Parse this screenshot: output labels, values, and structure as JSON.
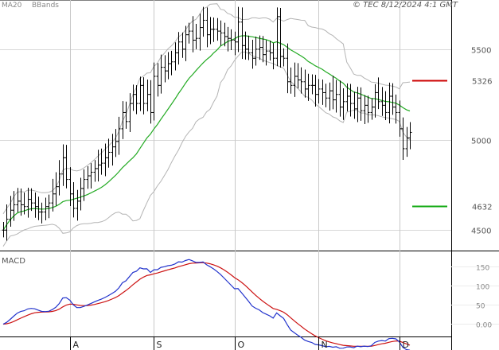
{
  "header": {
    "legend_ma": "MA20",
    "legend_bbands": "BBands",
    "copyright": "© TEC 8/12/2024 4:1 GMT"
  },
  "macd_panel": {
    "title": "MACD"
  },
  "colors": {
    "price_bar": "#000000",
    "ma20": "#22aa22",
    "bbands": "#b4b4b4",
    "grid": "#d8d8d8",
    "macd": "#2233cc",
    "signal": "#cc1111",
    "resistance": "#cc0000",
    "support": "#11aa11"
  },
  "chart_data": [
    {
      "type": "ohlc",
      "title": "",
      "y_ticks": [
        4500,
        5000,
        5500
      ],
      "y_tick_labels": [
        "4500",
        "5000",
        "5500"
      ],
      "ylim": [
        4400,
        5750
      ],
      "x_month_labels": [
        "A",
        "S",
        "O",
        "N",
        "D"
      ],
      "x_month_index": [
        19,
        43,
        66,
        90,
        113
      ],
      "x_count": 117,
      "grid": true,
      "legend": [
        "MA20",
        "BBands"
      ],
      "levels": [
        {
          "label": "5326",
          "value": 5326,
          "color": "#cc0000"
        },
        {
          "label": "4632",
          "value": 4632,
          "color": "#11aa11"
        }
      ],
      "closes": [
        4500,
        4560,
        4610,
        4640,
        4660,
        4640,
        4630,
        4670,
        4650,
        4630,
        4600,
        4600,
        4630,
        4650,
        4700,
        4740,
        4810,
        4900,
        4780,
        4700,
        4620,
        4660,
        4730,
        4780,
        4800,
        4820,
        4840,
        4860,
        4870,
        4900,
        4930,
        4960,
        4990,
        5060,
        5150,
        5100,
        5200,
        5250,
        5200,
        5300,
        5200,
        5250,
        5150,
        5350,
        5300,
        5400,
        5380,
        5420,
        5430,
        5480,
        5540,
        5500,
        5580,
        5600,
        5550,
        5560,
        5620,
        5660,
        5580,
        5610,
        5610,
        5600,
        5590,
        5570,
        5560,
        5550,
        5540,
        5650,
        5520,
        5500,
        5480,
        5450,
        5500,
        5510,
        5470,
        5490,
        5480,
        5450,
        5680,
        5460,
        5450,
        5320,
        5300,
        5350,
        5330,
        5320,
        5280,
        5300,
        5300,
        5250,
        5280,
        5260,
        5230,
        5270,
        5220,
        5250,
        5180,
        5210,
        5240,
        5200,
        5170,
        5230,
        5160,
        5190,
        5150,
        5180,
        5260,
        5210,
        5190,
        5150,
        5240,
        5180,
        5150,
        5060,
        4950,
        5010,
        5040
      ]
    },
    {
      "type": "line",
      "title": "MACD",
      "y_ticks": [
        0,
        50,
        100,
        150
      ],
      "y_tick_labels": [
        "0.00",
        "50",
        "100",
        "150"
      ],
      "ylim": [
        -30,
        185
      ],
      "series": [
        {
          "name": "MACD",
          "color": "#2233cc"
        },
        {
          "name": "Signal",
          "color": "#cc1111"
        }
      ]
    }
  ]
}
